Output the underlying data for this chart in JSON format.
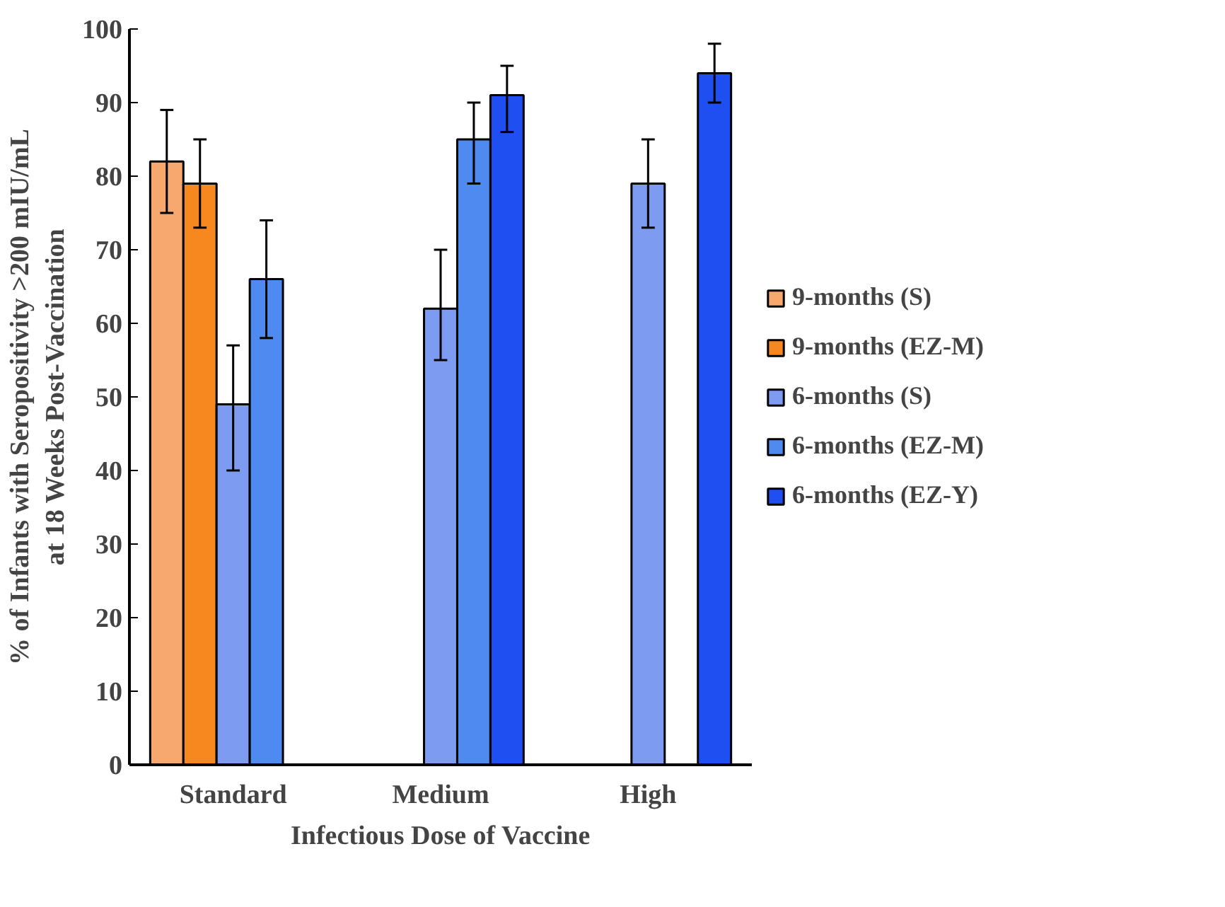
{
  "chart_data": {
    "type": "bar",
    "xlabel": "Infectious Dose of Vaccine",
    "ylabel": "% of Infants with Seropositivity >200 mIU/mL\nat 18 Weeks Post-Vaccination",
    "categories": [
      "Standard",
      "Medium",
      "High"
    ],
    "series": [
      {
        "name": "9-months (S)",
        "color": "#f7a86e",
        "values": [
          82,
          null,
          null
        ],
        "errors": [
          7,
          null,
          null
        ]
      },
      {
        "name": "9-months (EZ-M)",
        "color": "#f7881f",
        "values": [
          79,
          null,
          null
        ],
        "errors": [
          6,
          null,
          null
        ]
      },
      {
        "name": "6-months (S)",
        "color": "#7d9bf0",
        "values": [
          49,
          62,
          79
        ],
        "errors": [
          [
            40,
            57
          ],
          [
            55,
            70
          ],
          [
            73,
            85
          ]
        ]
      },
      {
        "name": "6-months (EZ-M)",
        "color": "#4f8af0",
        "values": [
          66,
          85,
          null
        ],
        "errors": [
          [
            58,
            74
          ],
          [
            79,
            90
          ],
          null
        ]
      },
      {
        "name": "6-months (EZ-Y)",
        "color": "#1f4ff0",
        "values": [
          null,
          91,
          94
        ],
        "errors": [
          null,
          [
            86,
            95
          ],
          [
            90,
            98
          ]
        ]
      }
    ],
    "ylim": [
      0,
      100
    ],
    "yticks": [
      0,
      10,
      20,
      30,
      40,
      50,
      60,
      70,
      80,
      90,
      100
    ],
    "grid": false,
    "legend": "right"
  }
}
